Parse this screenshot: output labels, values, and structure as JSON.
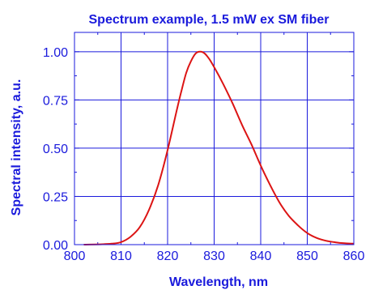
{
  "chart_data": {
    "type": "line",
    "title": "Spectrum example, 1.5 mW ex SM fiber",
    "xlabel": "Wavelength, nm",
    "ylabel": "Spectral intensity, a.u.",
    "xlim": [
      800,
      860
    ],
    "ylim": [
      0,
      1.1
    ],
    "x_ticks": [
      "800",
      "810",
      "820",
      "830",
      "840",
      "850",
      "860"
    ],
    "y_ticks": [
      "0.00",
      "0.25",
      "0.50",
      "0.75",
      "1.00"
    ],
    "grid": true,
    "colors": {
      "axis": "#1a1adc",
      "grid": "#1a1adc",
      "series": "#dc1414"
    },
    "series": [
      {
        "x": [
          802,
          806,
          808,
          810,
          812,
          814,
          816,
          818,
          820,
          822,
          823,
          824,
          825,
          826,
          827,
          828,
          829,
          830,
          832,
          834,
          836,
          838,
          840,
          842,
          844,
          846,
          848,
          850,
          852,
          854,
          856,
          858,
          860
        ],
        "values": [
          0.0,
          0.002,
          0.005,
          0.013,
          0.04,
          0.09,
          0.18,
          0.31,
          0.49,
          0.7,
          0.8,
          0.89,
          0.95,
          0.99,
          1.0,
          0.99,
          0.96,
          0.92,
          0.83,
          0.73,
          0.62,
          0.52,
          0.41,
          0.31,
          0.22,
          0.15,
          0.1,
          0.06,
          0.035,
          0.02,
          0.012,
          0.007,
          0.005
        ]
      }
    ]
  }
}
